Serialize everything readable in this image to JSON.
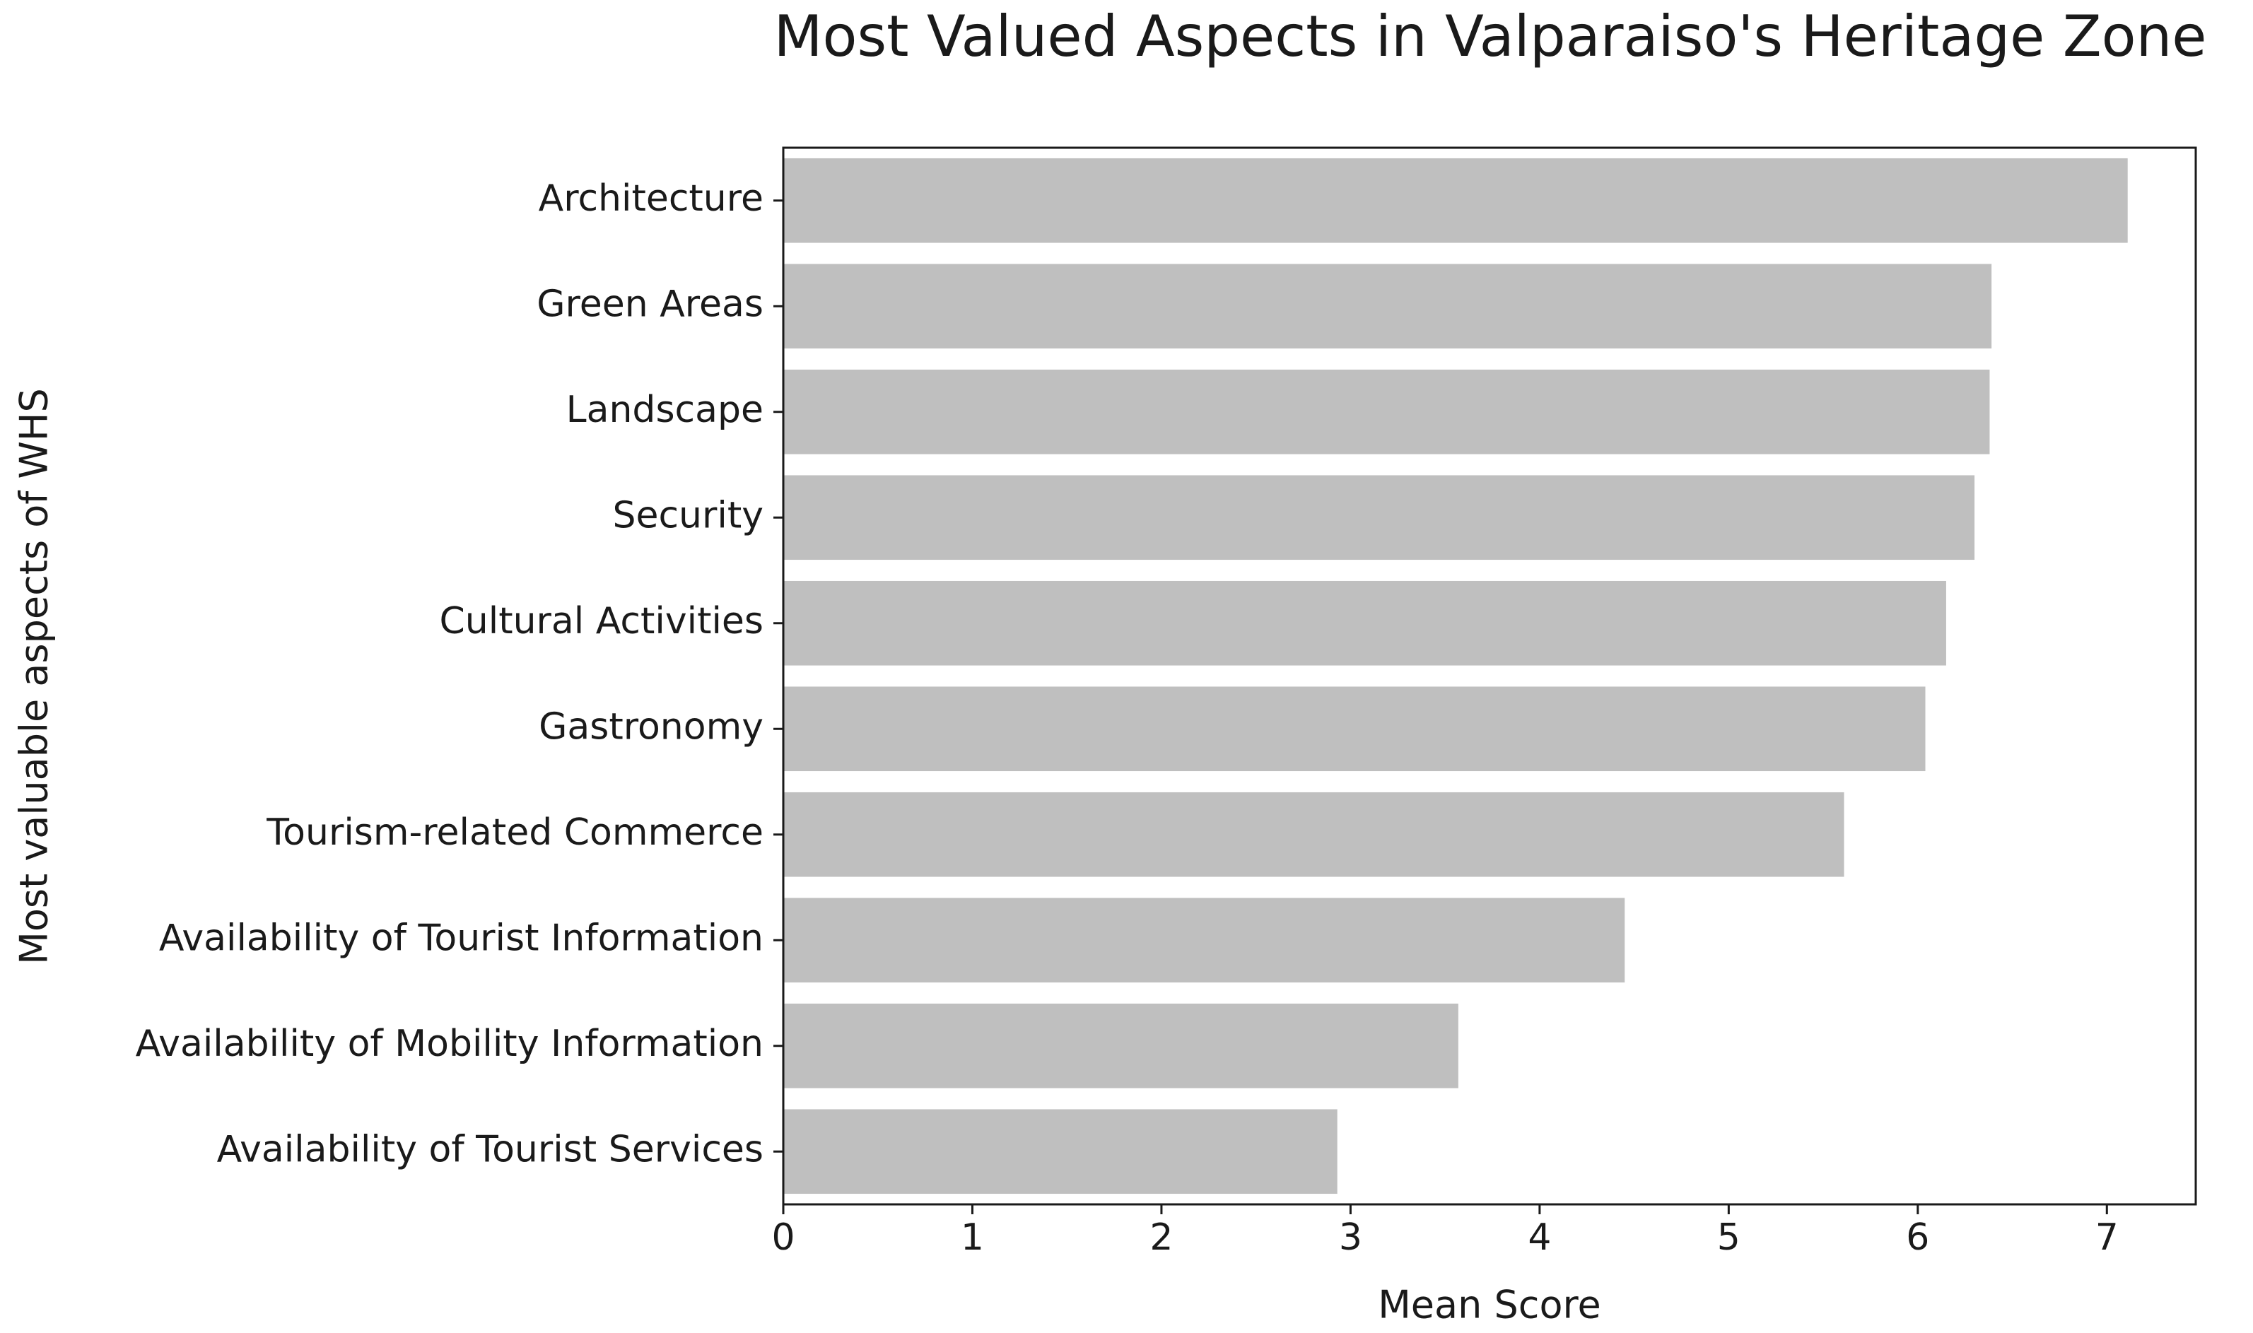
{
  "chart_data": {
    "type": "barh",
    "title": "Most Valued Aspects in Valparaiso's Heritage Zone",
    "xlabel": "Mean Score",
    "ylabel": "Most valuable aspects of WHS",
    "categories": [
      "Architecture",
      "Green Areas",
      "Landscape",
      "Security",
      "Cultural Activities",
      "Gastronomy",
      "Tourism-related Commerce",
      "Availability of Tourist Information",
      "Availability of Mobility Information",
      "Availability of Tourist Services"
    ],
    "values": [
      7.11,
      6.39,
      6.38,
      6.3,
      6.15,
      6.04,
      5.61,
      4.45,
      3.57,
      2.93
    ],
    "color": "#bfbfbf",
    "xlim": [
      0,
      7.47
    ],
    "xticks": [
      0,
      1,
      2,
      3,
      4,
      5,
      6,
      7
    ],
    "grid": false
  }
}
